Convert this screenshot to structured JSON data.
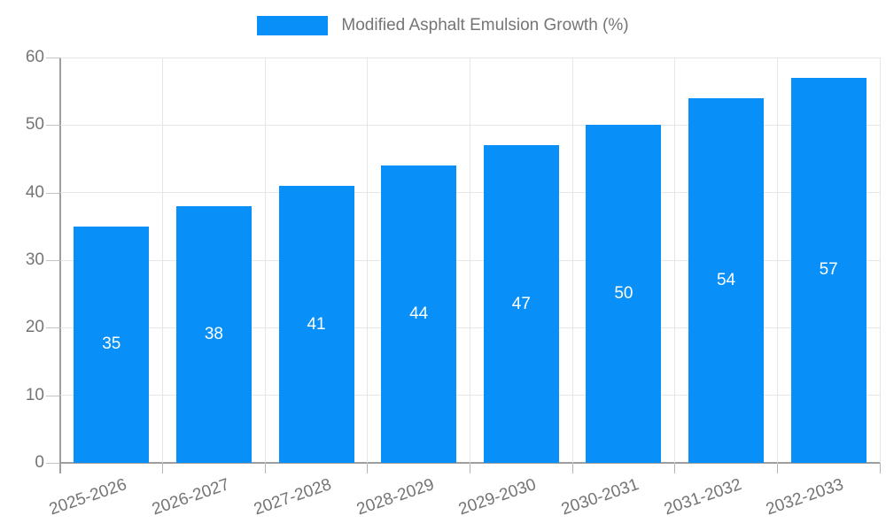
{
  "legend": {
    "label": "Modified Asphalt Emulsion Growth (%)"
  },
  "chart_data": {
    "type": "bar",
    "title": "Modified Asphalt Emulsion Growth (%)",
    "categories": [
      "2025-2026",
      "2026-2027",
      "2027-2028",
      "2028-2029",
      "2029-2030",
      "2030-2031",
      "2031-2032",
      "2032-2033"
    ],
    "values": [
      35,
      38,
      41,
      44,
      47,
      50,
      54,
      57
    ],
    "series_name": "Modified Asphalt Emulsion Growth (%)",
    "xlabel": "",
    "ylabel": "",
    "ylim": [
      0,
      60
    ],
    "yticks": [
      0,
      10,
      20,
      30,
      40,
      50,
      60
    ],
    "grid": true,
    "legend_position": "top",
    "bar_color": "#0890f8",
    "value_label_color": "#ffffff"
  },
  "colors": {
    "accent_blue": "#0890f8",
    "grid": "#e6e6e6",
    "axis": "#9e9e9e",
    "tick_text": "#757575",
    "background": "#ffffff"
  }
}
